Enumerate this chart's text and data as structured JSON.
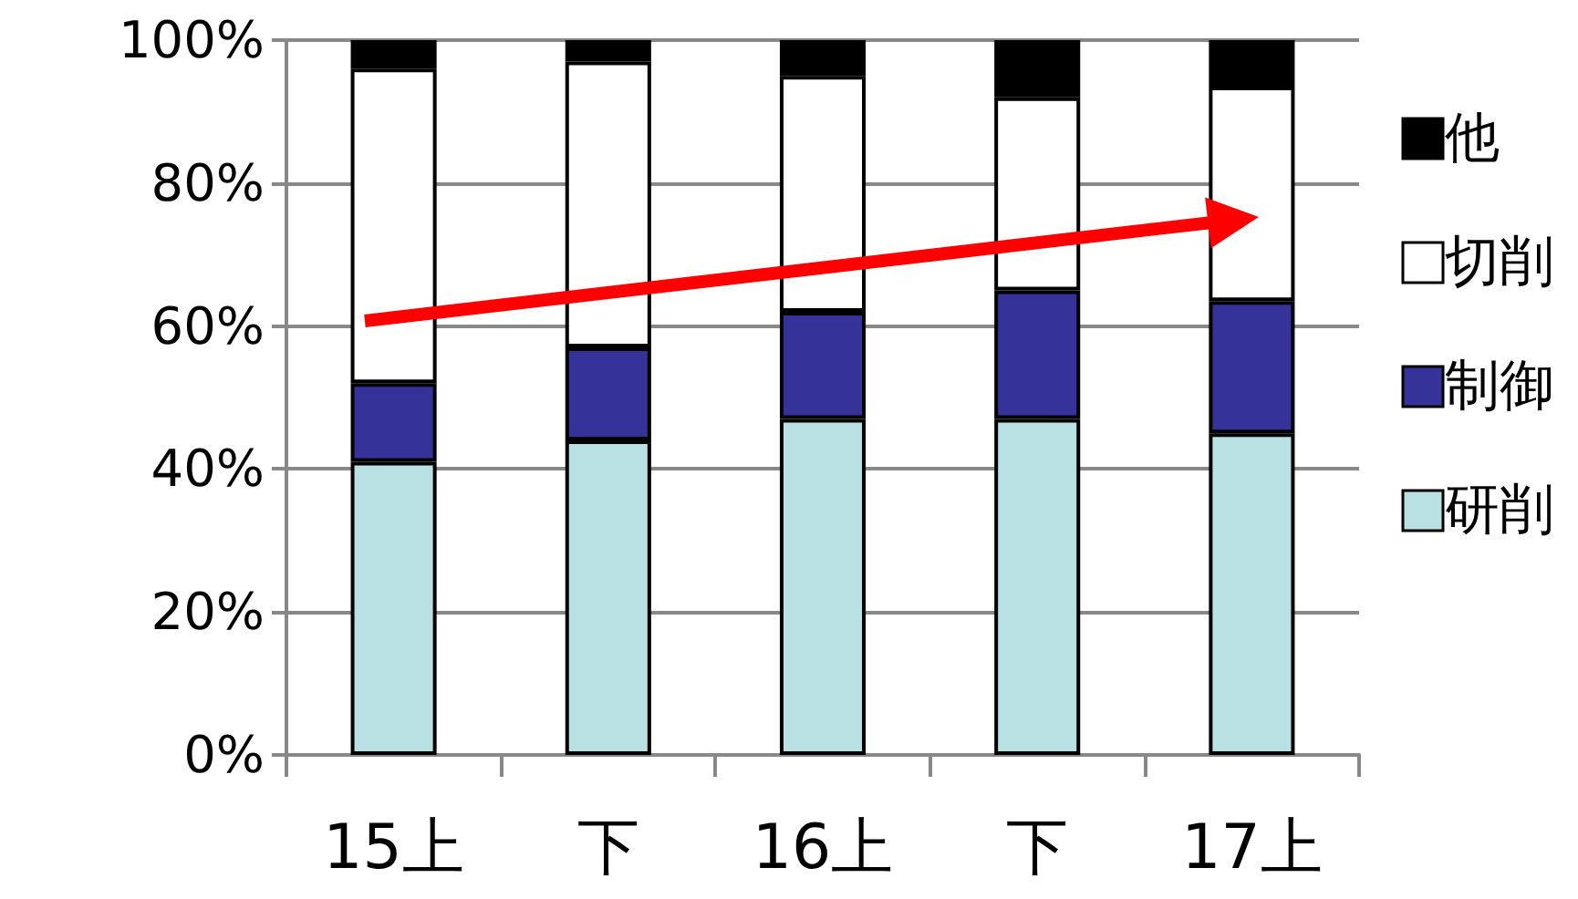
{
  "chart_data": {
    "type": "bar",
    "stacked": true,
    "categories": [
      "15上",
      "下",
      "16上",
      "下",
      "17上"
    ],
    "series": [
      {
        "name": "研削",
        "color": "#b9e0e3",
        "values": [
          41,
          44,
          47,
          47,
          45
        ]
      },
      {
        "name": "制御",
        "color": "#35339a",
        "values": [
          11,
          13,
          15,
          18,
          18.5
        ]
      },
      {
        "name": "切削",
        "color": "#ffffff",
        "values": [
          44,
          40,
          33,
          27,
          30
        ]
      },
      {
        "name": "他",
        "color": "#000000",
        "values": [
          4,
          3,
          5,
          8,
          6.5
        ]
      }
    ],
    "ylim": [
      0,
      100
    ],
    "yticks": [
      {
        "value": 0,
        "label": "0%"
      },
      {
        "value": 20,
        "label": "20%"
      },
      {
        "value": 40,
        "label": "40%"
      },
      {
        "value": 60,
        "label": "60%"
      },
      {
        "value": 80,
        "label": "80%"
      },
      {
        "value": 100,
        "label": "100%"
      }
    ],
    "grid": "y",
    "legend": "right"
  }
}
